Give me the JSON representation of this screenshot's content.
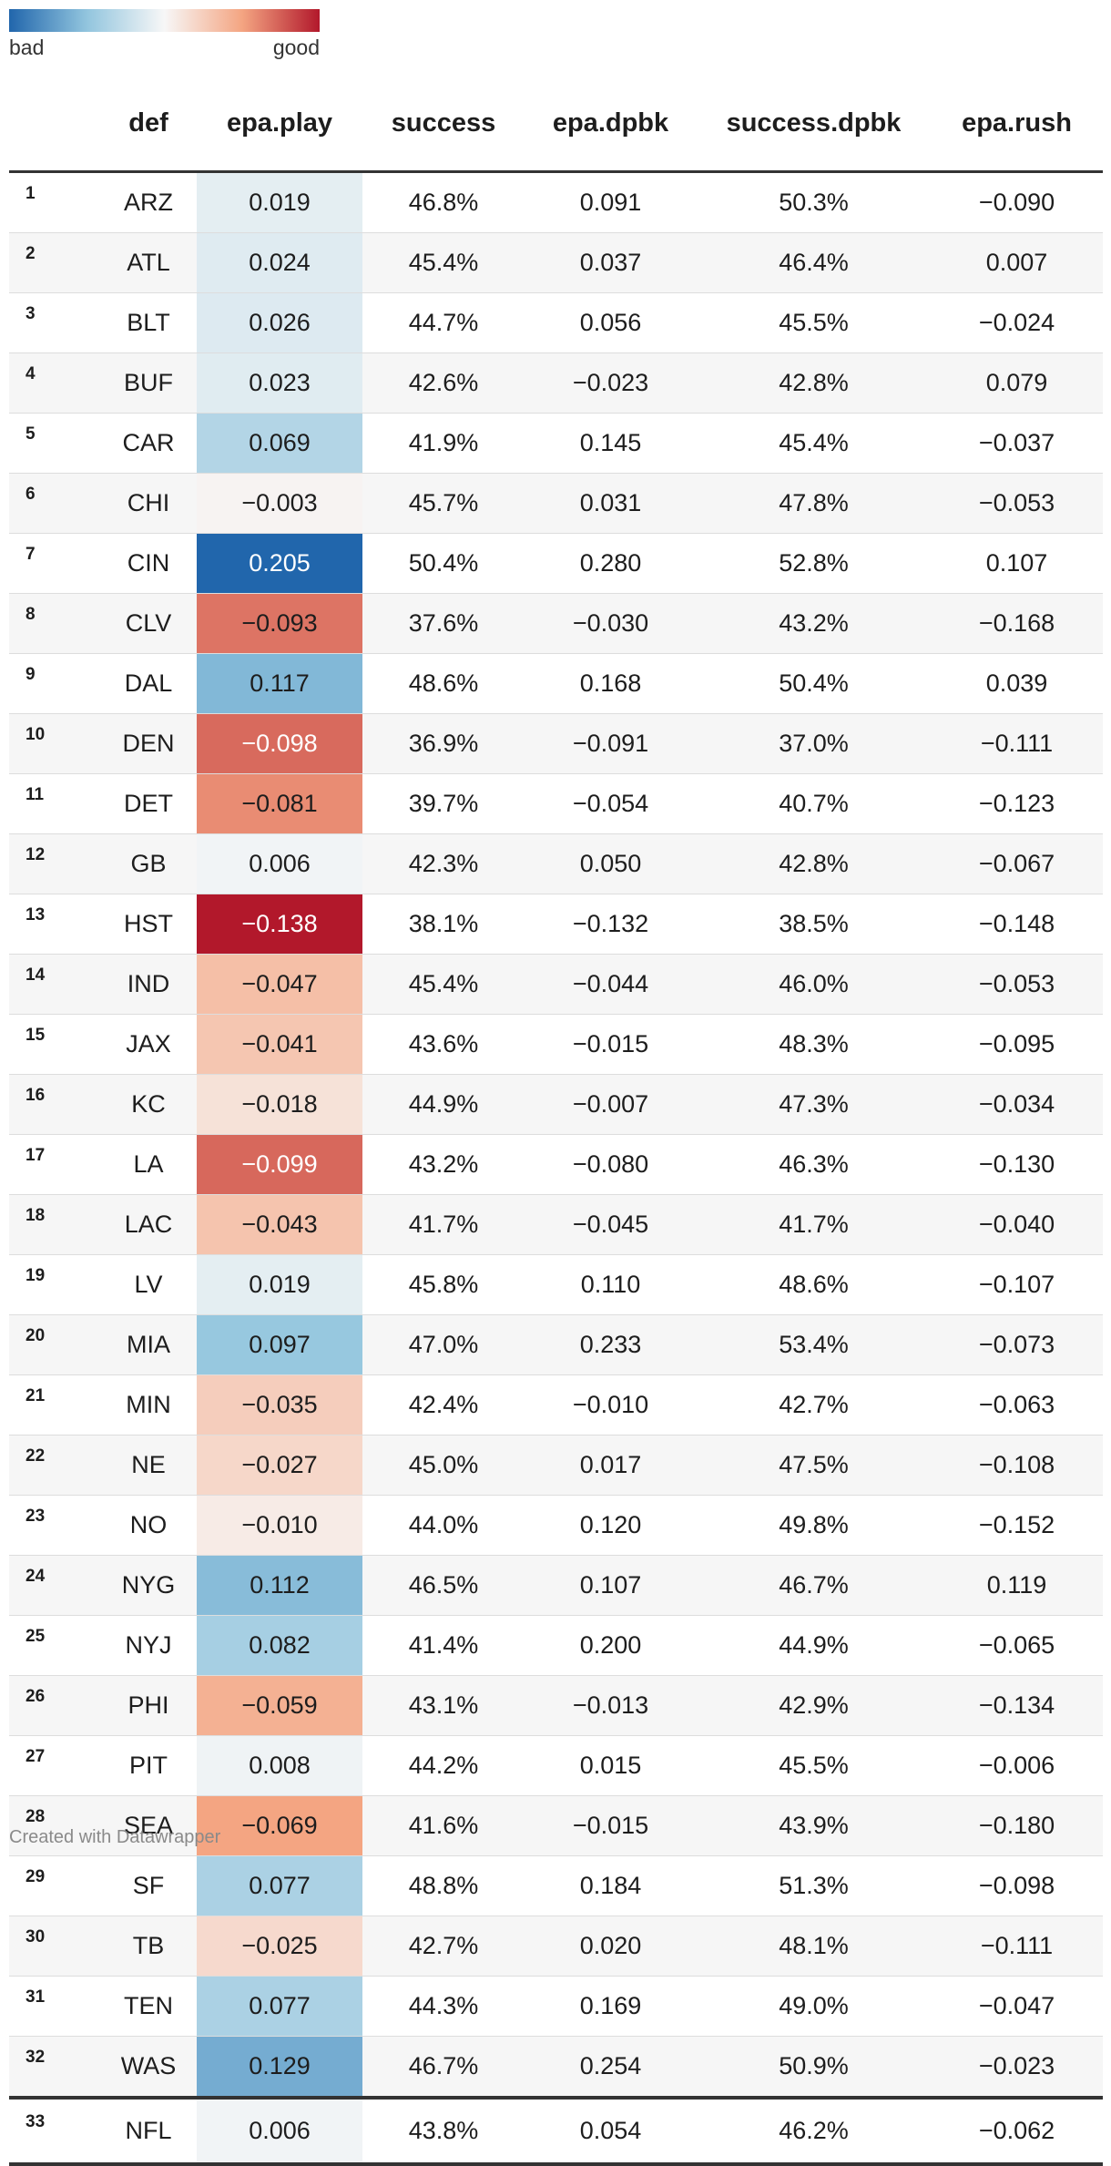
{
  "legend": {
    "left_label": "bad",
    "right_label": "good",
    "colors": [
      "#2166ac",
      "#92c5de",
      "#f7f7f7",
      "#f4a582",
      "#b2182b"
    ]
  },
  "columns": [
    "",
    "def",
    "epa.play",
    "success",
    "epa.dpbk",
    "success.dpbk",
    "epa.rush"
  ],
  "credit": "Created with Datawrapper",
  "chart_data": {
    "type": "table",
    "heatmap_column": "epa.play",
    "heatmap_domain": [
      -0.138,
      0.205
    ],
    "rows": [
      {
        "rank": "1",
        "def": "ARZ",
        "epa_play": "0.019",
        "success": "46.8%",
        "epa_dpbk": "0.091",
        "success_dpbk": "50.3%",
        "epa_rush": "−0.090"
      },
      {
        "rank": "2",
        "def": "ATL",
        "epa_play": "0.024",
        "success": "45.4%",
        "epa_dpbk": "0.037",
        "success_dpbk": "46.4%",
        "epa_rush": "0.007"
      },
      {
        "rank": "3",
        "def": "BLT",
        "epa_play": "0.026",
        "success": "44.7%",
        "epa_dpbk": "0.056",
        "success_dpbk": "45.5%",
        "epa_rush": "−0.024"
      },
      {
        "rank": "4",
        "def": "BUF",
        "epa_play": "0.023",
        "success": "42.6%",
        "epa_dpbk": "−0.023",
        "success_dpbk": "42.8%",
        "epa_rush": "0.079"
      },
      {
        "rank": "5",
        "def": "CAR",
        "epa_play": "0.069",
        "success": "41.9%",
        "epa_dpbk": "0.145",
        "success_dpbk": "45.4%",
        "epa_rush": "−0.037"
      },
      {
        "rank": "6",
        "def": "CHI",
        "epa_play": "−0.003",
        "success": "45.7%",
        "epa_dpbk": "0.031",
        "success_dpbk": "47.8%",
        "epa_rush": "−0.053"
      },
      {
        "rank": "7",
        "def": "CIN",
        "epa_play": "0.205",
        "success": "50.4%",
        "epa_dpbk": "0.280",
        "success_dpbk": "52.8%",
        "epa_rush": "0.107"
      },
      {
        "rank": "8",
        "def": "CLV",
        "epa_play": "−0.093",
        "success": "37.6%",
        "epa_dpbk": "−0.030",
        "success_dpbk": "43.2%",
        "epa_rush": "−0.168"
      },
      {
        "rank": "9",
        "def": "DAL",
        "epa_play": "0.117",
        "success": "48.6%",
        "epa_dpbk": "0.168",
        "success_dpbk": "50.4%",
        "epa_rush": "0.039"
      },
      {
        "rank": "10",
        "def": "DEN",
        "epa_play": "−0.098",
        "success": "36.9%",
        "epa_dpbk": "−0.091",
        "success_dpbk": "37.0%",
        "epa_rush": "−0.111"
      },
      {
        "rank": "11",
        "def": "DET",
        "epa_play": "−0.081",
        "success": "39.7%",
        "epa_dpbk": "−0.054",
        "success_dpbk": "40.7%",
        "epa_rush": "−0.123"
      },
      {
        "rank": "12",
        "def": "GB",
        "epa_play": "0.006",
        "success": "42.3%",
        "epa_dpbk": "0.050",
        "success_dpbk": "42.8%",
        "epa_rush": "−0.067"
      },
      {
        "rank": "13",
        "def": "HST",
        "epa_play": "−0.138",
        "success": "38.1%",
        "epa_dpbk": "−0.132",
        "success_dpbk": "38.5%",
        "epa_rush": "−0.148"
      },
      {
        "rank": "14",
        "def": "IND",
        "epa_play": "−0.047",
        "success": "45.4%",
        "epa_dpbk": "−0.044",
        "success_dpbk": "46.0%",
        "epa_rush": "−0.053"
      },
      {
        "rank": "15",
        "def": "JAX",
        "epa_play": "−0.041",
        "success": "43.6%",
        "epa_dpbk": "−0.015",
        "success_dpbk": "48.3%",
        "epa_rush": "−0.095"
      },
      {
        "rank": "16",
        "def": "KC",
        "epa_play": "−0.018",
        "success": "44.9%",
        "epa_dpbk": "−0.007",
        "success_dpbk": "47.3%",
        "epa_rush": "−0.034"
      },
      {
        "rank": "17",
        "def": "LA",
        "epa_play": "−0.099",
        "success": "43.2%",
        "epa_dpbk": "−0.080",
        "success_dpbk": "46.3%",
        "epa_rush": "−0.130"
      },
      {
        "rank": "18",
        "def": "LAC",
        "epa_play": "−0.043",
        "success": "41.7%",
        "epa_dpbk": "−0.045",
        "success_dpbk": "41.7%",
        "epa_rush": "−0.040"
      },
      {
        "rank": "19",
        "def": "LV",
        "epa_play": "0.019",
        "success": "45.8%",
        "epa_dpbk": "0.110",
        "success_dpbk": "48.6%",
        "epa_rush": "−0.107"
      },
      {
        "rank": "20",
        "def": "MIA",
        "epa_play": "0.097",
        "success": "47.0%",
        "epa_dpbk": "0.233",
        "success_dpbk": "53.4%",
        "epa_rush": "−0.073"
      },
      {
        "rank": "21",
        "def": "MIN",
        "epa_play": "−0.035",
        "success": "42.4%",
        "epa_dpbk": "−0.010",
        "success_dpbk": "42.7%",
        "epa_rush": "−0.063"
      },
      {
        "rank": "22",
        "def": "NE",
        "epa_play": "−0.027",
        "success": "45.0%",
        "epa_dpbk": "0.017",
        "success_dpbk": "47.5%",
        "epa_rush": "−0.108"
      },
      {
        "rank": "23",
        "def": "NO",
        "epa_play": "−0.010",
        "success": "44.0%",
        "epa_dpbk": "0.120",
        "success_dpbk": "49.8%",
        "epa_rush": "−0.152"
      },
      {
        "rank": "24",
        "def": "NYG",
        "epa_play": "0.112",
        "success": "46.5%",
        "epa_dpbk": "0.107",
        "success_dpbk": "46.7%",
        "epa_rush": "0.119"
      },
      {
        "rank": "25",
        "def": "NYJ",
        "epa_play": "0.082",
        "success": "41.4%",
        "epa_dpbk": "0.200",
        "success_dpbk": "44.9%",
        "epa_rush": "−0.065"
      },
      {
        "rank": "26",
        "def": "PHI",
        "epa_play": "−0.059",
        "success": "43.1%",
        "epa_dpbk": "−0.013",
        "success_dpbk": "42.9%",
        "epa_rush": "−0.134"
      },
      {
        "rank": "27",
        "def": "PIT",
        "epa_play": "0.008",
        "success": "44.2%",
        "epa_dpbk": "0.015",
        "success_dpbk": "45.5%",
        "epa_rush": "−0.006"
      },
      {
        "rank": "28",
        "def": "SEA",
        "epa_play": "−0.069",
        "success": "41.6%",
        "epa_dpbk": "−0.015",
        "success_dpbk": "43.9%",
        "epa_rush": "−0.180"
      },
      {
        "rank": "29",
        "def": "SF",
        "epa_play": "0.077",
        "success": "48.8%",
        "epa_dpbk": "0.184",
        "success_dpbk": "51.3%",
        "epa_rush": "−0.098"
      },
      {
        "rank": "30",
        "def": "TB",
        "epa_play": "−0.025",
        "success": "42.7%",
        "epa_dpbk": "0.020",
        "success_dpbk": "48.1%",
        "epa_rush": "−0.111"
      },
      {
        "rank": "31",
        "def": "TEN",
        "epa_play": "0.077",
        "success": "44.3%",
        "epa_dpbk": "0.169",
        "success_dpbk": "49.0%",
        "epa_rush": "−0.047"
      },
      {
        "rank": "32",
        "def": "WAS",
        "epa_play": "0.129",
        "success": "46.7%",
        "epa_dpbk": "0.254",
        "success_dpbk": "50.9%",
        "epa_rush": "−0.023"
      }
    ],
    "summary_row": {
      "rank": "33",
      "def": "NFL",
      "epa_play": "0.006",
      "success": "43.8%",
      "epa_dpbk": "0.054",
      "success_dpbk": "46.2%",
      "epa_rush": "−0.062"
    }
  }
}
